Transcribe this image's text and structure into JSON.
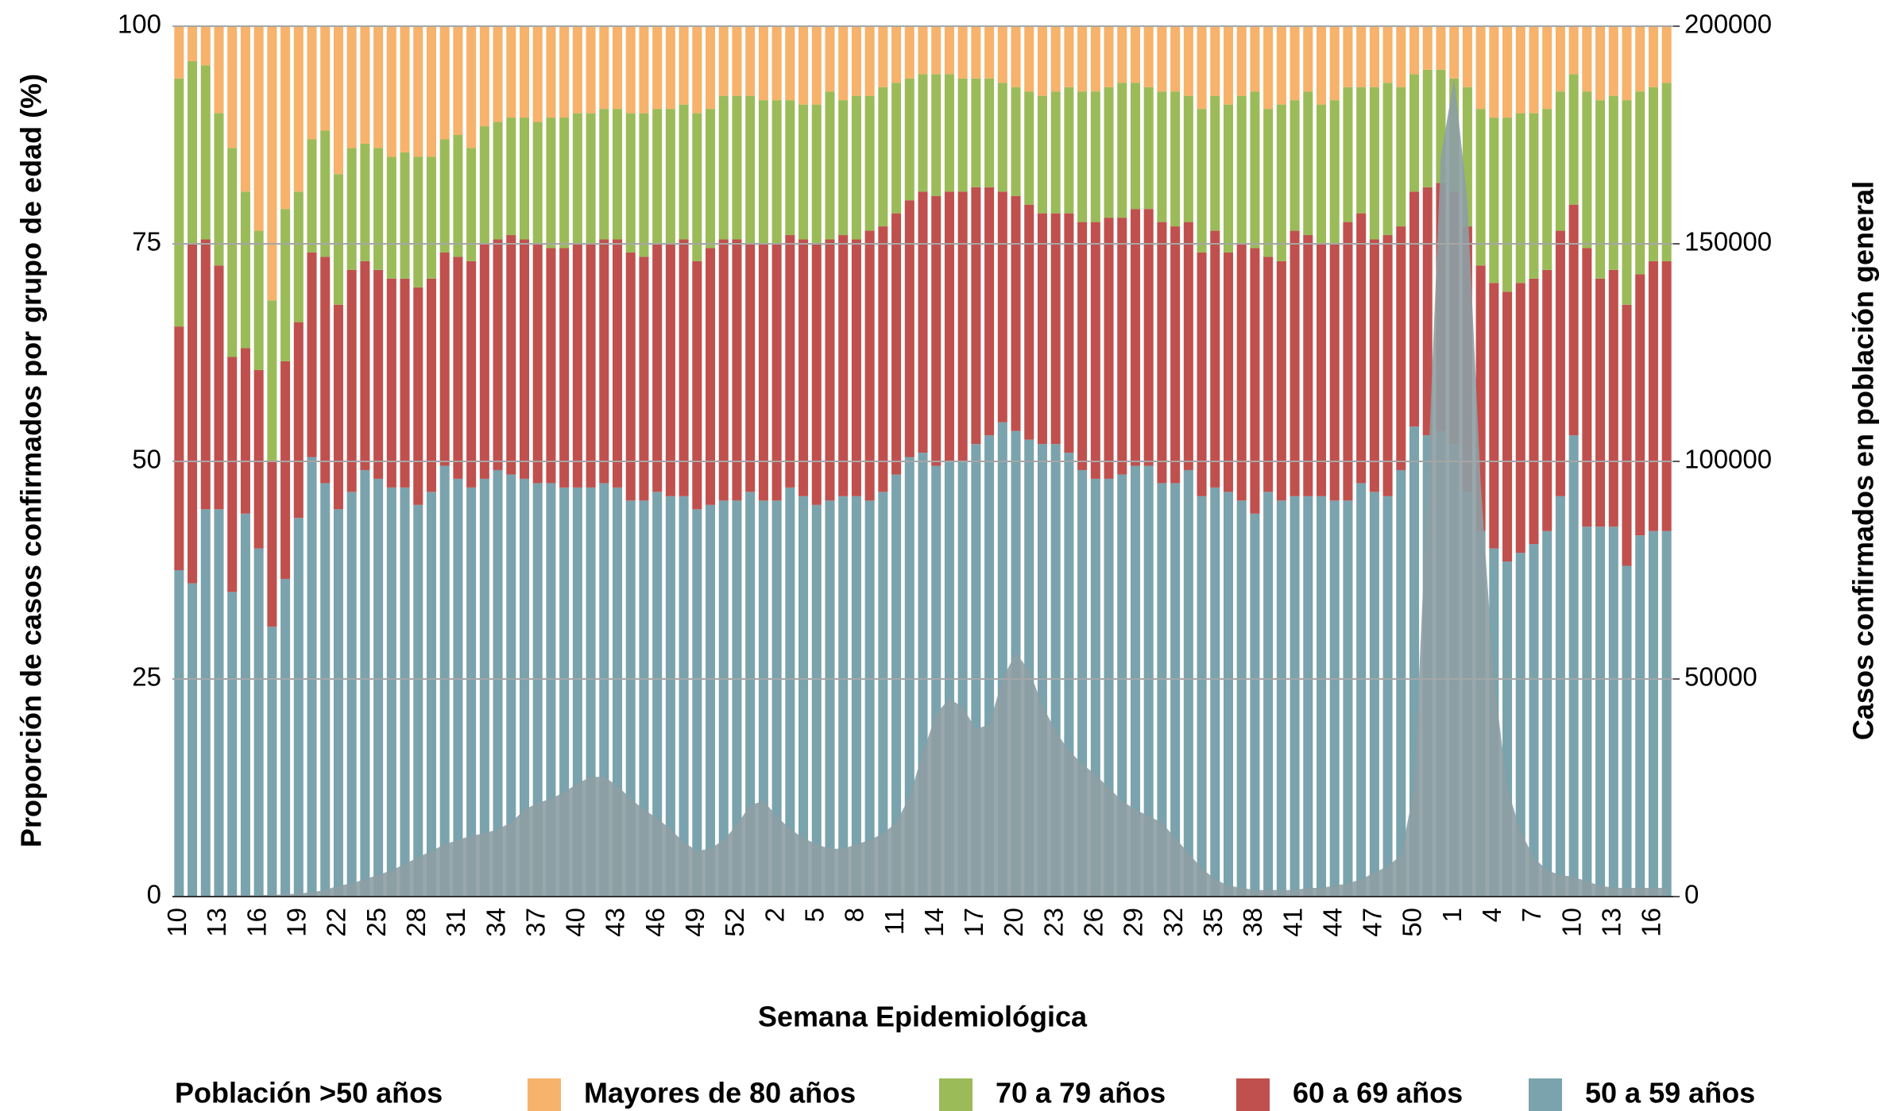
{
  "chart_data": {
    "type": "stacked_bar",
    "x_label": "Semana Epidemiológica",
    "y_label": "Proporción de casos confirmados por grupo de edad (%)",
    "y2_label": "Casos confirmados en población general",
    "legend_title": "Población >50 años",
    "categories": [
      "10",
      null,
      null,
      "13",
      null,
      null,
      "16",
      null,
      null,
      "19",
      null,
      null,
      "22",
      null,
      null,
      "25",
      null,
      null,
      "28",
      null,
      null,
      "31",
      null,
      null,
      "34",
      null,
      null,
      "37",
      null,
      null,
      "40",
      null,
      null,
      "43",
      null,
      null,
      "46",
      null,
      null,
      "49",
      null,
      null,
      "52",
      null,
      null,
      "2",
      null,
      null,
      "5",
      null,
      null,
      "8",
      null,
      null,
      "11",
      null,
      null,
      "14",
      null,
      null,
      "17",
      null,
      null,
      "20",
      null,
      null,
      "23",
      null,
      null,
      "26",
      null,
      null,
      "29",
      null,
      null,
      "32",
      null,
      null,
      "35",
      null,
      null,
      "38",
      null,
      null,
      "41",
      null,
      null,
      "44",
      null,
      null,
      "47",
      null,
      null,
      "50",
      null,
      null,
      "1",
      null,
      null,
      "4",
      null,
      null,
      "7",
      null,
      null,
      "10",
      null,
      null,
      "13",
      null,
      null,
      "16",
      null
    ],
    "ylim": [
      0,
      100
    ],
    "yticks": [
      0,
      25,
      50,
      75,
      100
    ],
    "y2lim": [
      0,
      200000
    ],
    "y2ticks": [
      0,
      50000,
      100000,
      150000,
      200000
    ],
    "grid": true,
    "series": [
      {
        "name": "50 a 59 años",
        "color": "#7aa3ad",
        "values": [
          37.5,
          36,
          44.5,
          44.5,
          35,
          44,
          40,
          31,
          36.5,
          43.5,
          50.5,
          47.5,
          44.5,
          46.5,
          49,
          48,
          47,
          47,
          45,
          46.5,
          49.5,
          48,
          47,
          48,
          49,
          48.5,
          48,
          47.5,
          47.5,
          47,
          47,
          47,
          47.5,
          47,
          45.5,
          45.5,
          46.5,
          46,
          46,
          44.5,
          45,
          45.5,
          45.5,
          46.5,
          45.5,
          45.5,
          47,
          46,
          45,
          45.5,
          46,
          46,
          45.5,
          46.5,
          48.5,
          50.5,
          51,
          49.5,
          50,
          50,
          52,
          53,
          54.5,
          53.5,
          52.5,
          52,
          52,
          51,
          49,
          48,
          48,
          48.5,
          49.5,
          49.5,
          47.5,
          47.5,
          49,
          46,
          47,
          46.5,
          45.5,
          44,
          46.5,
          45.5,
          46,
          46,
          46,
          45.5,
          45.5,
          47.5,
          46.5,
          46,
          49,
          54,
          53,
          53.5,
          52,
          46.5,
          42,
          40,
          38.5,
          39.5,
          40.5,
          42,
          46,
          53,
          42.5,
          42.5,
          42.5,
          38,
          41.5,
          42,
          42
        ]
      },
      {
        "name": "60 a 69 años",
        "color": "#c0504d",
        "values": [
          28,
          39,
          31,
          28,
          27,
          19,
          20.5,
          19,
          25,
          22.5,
          23.5,
          26,
          23.5,
          25.5,
          24,
          24,
          24,
          24,
          25,
          24.5,
          24.5,
          25.5,
          26,
          27,
          26.5,
          27.5,
          27.5,
          27.5,
          27,
          27.5,
          28,
          28,
          28,
          28.5,
          28.5,
          28,
          28.5,
          29,
          29.5,
          28.5,
          29.5,
          30,
          30,
          28.5,
          29.5,
          29.5,
          29,
          29.5,
          30,
          30,
          30,
          29.5,
          31,
          30.5,
          30,
          29.5,
          30,
          31,
          31,
          31,
          29.5,
          28.5,
          26.5,
          27,
          27,
          26.5,
          26.5,
          27.5,
          28.5,
          29.5,
          30,
          29.5,
          29.5,
          29.5,
          30,
          29.5,
          28.5,
          28,
          29.5,
          27.5,
          29.5,
          30.5,
          27,
          27.5,
          30.5,
          30,
          29,
          29.5,
          32,
          31,
          29,
          30,
          28,
          27,
          28.5,
          28.5,
          29,
          30.5,
          30.5,
          30.5,
          31,
          31,
          30.5,
          30,
          30.5,
          26.5,
          32,
          28.5,
          29.5,
          30,
          30,
          31,
          31
        ]
      },
      {
        "name": "70 a 79 años",
        "color": "#9bbb59",
        "values": [
          28.5,
          21,
          20,
          17.5,
          24,
          18,
          16,
          18.5,
          17.5,
          15,
          13,
          14.5,
          15,
          14,
          13.5,
          14,
          14,
          14.5,
          15,
          14,
          13,
          14,
          13,
          13.5,
          13.5,
          13.5,
          14,
          14,
          15,
          15,
          15,
          15,
          15,
          15,
          16,
          16.5,
          15.5,
          15.5,
          15.5,
          17,
          16,
          16.5,
          16.5,
          17,
          16.5,
          16.5,
          15.5,
          15.5,
          16,
          17,
          15.5,
          16.5,
          15.5,
          16,
          15,
          14,
          13.5,
          14,
          13.5,
          13,
          12.5,
          12.5,
          12.5,
          12.5,
          13,
          13.5,
          14,
          14.5,
          15,
          15,
          15,
          15.5,
          14.5,
          14,
          15,
          15.5,
          14.5,
          16.5,
          15.5,
          17,
          17,
          18,
          17,
          18,
          15,
          16.5,
          16,
          16.5,
          15.5,
          14.5,
          17.5,
          17.5,
          16,
          13.5,
          13.5,
          13,
          13,
          16,
          18,
          19,
          20,
          19.5,
          19,
          18.5,
          16,
          15,
          18,
          20.5,
          20,
          23.5,
          21,
          20,
          20.5
        ]
      },
      {
        "name": "Mayores de 80 años",
        "color": "#f7b26b",
        "values": [
          6,
          4,
          4.5,
          10,
          14,
          19,
          23.5,
          31.5,
          21,
          19,
          13,
          12,
          17,
          14,
          13.5,
          14,
          15,
          14.5,
          15,
          15,
          13,
          12.5,
          14,
          11.5,
          11,
          10.5,
          10.5,
          11,
          10.5,
          10.5,
          10,
          10,
          9.5,
          9.5,
          10,
          10,
          9.5,
          9.5,
          9,
          10,
          9.5,
          8,
          8,
          8,
          8.5,
          8.5,
          8.5,
          9,
          9,
          7.5,
          8.5,
          8,
          8,
          7,
          6.5,
          6,
          5.5,
          5.5,
          5.5,
          6,
          6,
          6,
          6.5,
          7,
          7.5,
          8,
          7.5,
          7,
          7.5,
          7.5,
          7,
          6.5,
          6.5,
          7,
          7.5,
          7.5,
          8,
          9.5,
          8,
          9,
          8,
          7.5,
          9.5,
          9,
          8.5,
          7.5,
          9,
          8.5,
          7,
          7,
          7,
          6.5,
          7,
          5.5,
          5,
          5,
          6,
          7,
          9.5,
          10.5,
          10.5,
          10,
          10,
          9.5,
          7.5,
          5.5,
          7.5,
          8.5,
          8,
          8.5,
          7.5,
          7,
          6.5
        ]
      }
    ],
    "area": {
      "color": "#8d9fa4",
      "axis": "y2",
      "values": [
        0,
        0,
        100,
        200,
        300,
        300,
        300,
        400,
        500,
        700,
        1000,
        1500,
        2500,
        3000,
        4000,
        5000,
        6000,
        7500,
        9000,
        10500,
        12000,
        13000,
        14000,
        14500,
        15500,
        17000,
        20000,
        21500,
        22500,
        24000,
        26000,
        27500,
        27500,
        25500,
        22500,
        20000,
        18000,
        15500,
        12500,
        10500,
        11000,
        13000,
        16500,
        21000,
        22000,
        18500,
        15500,
        13500,
        12000,
        11000,
        11000,
        12000,
        13000,
        14500,
        17000,
        23000,
        33000,
        42000,
        45500,
        43500,
        38500,
        39500,
        50000,
        56000,
        52000,
        44000,
        38000,
        33500,
        30500,
        28000,
        25000,
        22000,
        20000,
        18500,
        17000,
        13500,
        10000,
        6500,
        4000,
        2500,
        2000,
        1500,
        1500,
        1500,
        1500,
        2000,
        2000,
        2500,
        3000,
        4000,
        5500,
        7000,
        9500,
        25000,
        95000,
        170000,
        188000,
        160000,
        95000,
        50000,
        25000,
        15000,
        9000,
        6000,
        5000,
        4500,
        3500,
        2500,
        2000,
        2000,
        2000,
        2000,
        2000
      ]
    }
  }
}
